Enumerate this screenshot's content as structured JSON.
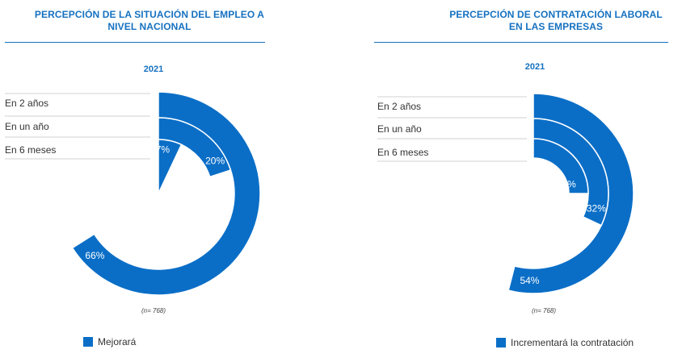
{
  "colors": {
    "accent": "#1571c0",
    "bar": "#0a6ec7",
    "separator": "#d0d0d0",
    "text": "#333333"
  },
  "chart_data": [
    {
      "type": "radial-bar",
      "title": "PERCEPCIÓN DE LA SITUACIÓN DEL EMPLEO A NIVEL NACIONAL",
      "year": "2021",
      "categories": [
        "En 2 años",
        "En un año",
        "En 6 meses"
      ],
      "series": [
        {
          "name": "Mejorará",
          "values": [
            66,
            20,
            7
          ]
        }
      ],
      "value_labels": [
        "66%",
        "20%",
        "7%"
      ],
      "sample_note": "(n= 768)",
      "legend": "bottom-left",
      "ylim": [
        0,
        100
      ]
    },
    {
      "type": "radial-bar",
      "title": "PERCEPCIÓN DE CONTRATACIÓN LABORAL EN LAS EMPRESAS",
      "year": "2021",
      "categories": [
        "En 2 años",
        "En un año",
        "En 6 meses"
      ],
      "series": [
        {
          "name": "Incrementará la contratación",
          "values": [
            54,
            32,
            25
          ]
        }
      ],
      "value_labels": [
        "54%",
        "32%",
        "25%"
      ],
      "sample_note": "(n= 768)",
      "legend": "bottom-right",
      "ylim": [
        0,
        100
      ]
    }
  ]
}
